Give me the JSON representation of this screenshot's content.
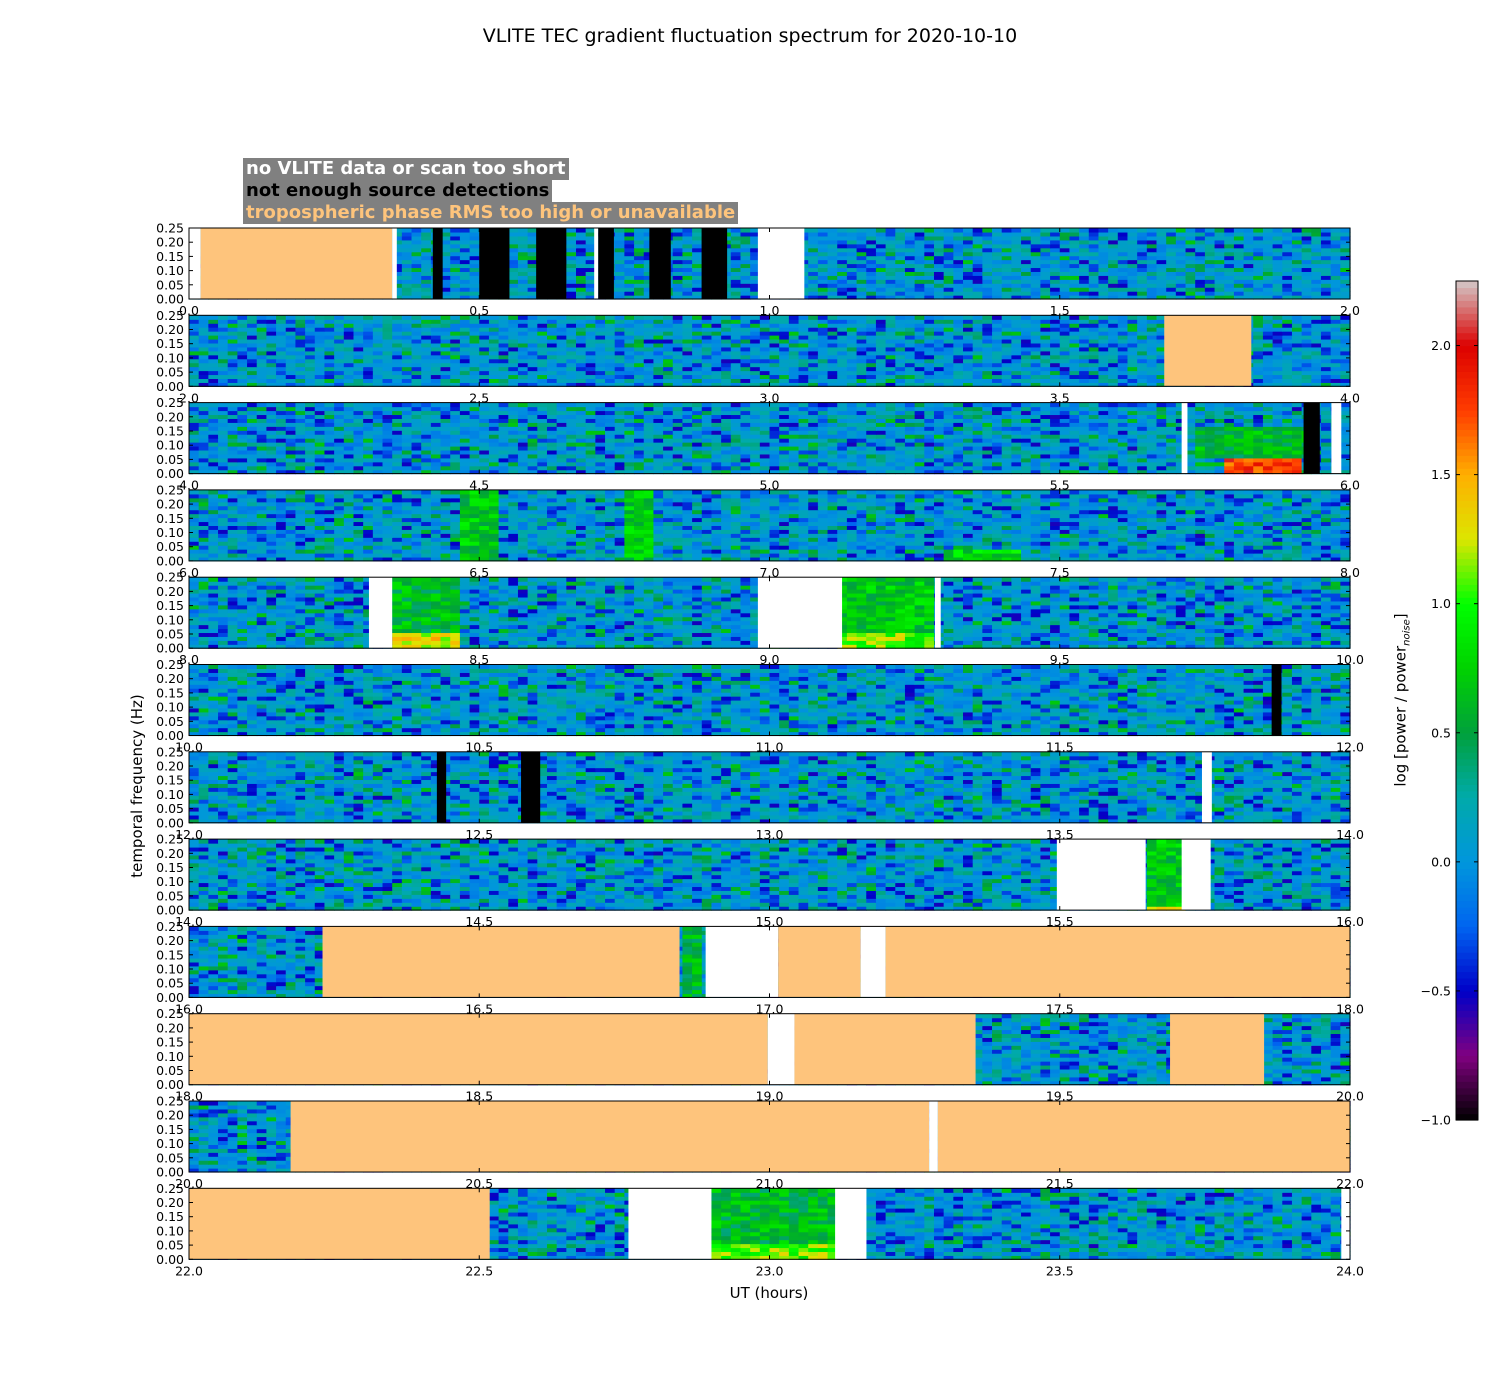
{
  "title": "VLITE TEC gradient fluctuation spectrum for 2020-10-10",
  "legend": {
    "items": [
      {
        "label": "no VLITE data or scan too short",
        "color": "#ffffff"
      },
      {
        "label": "not enough source detections",
        "color": "#000000"
      },
      {
        "label": "tropospheric phase RMS too high or unavailable",
        "color": "#fec47c"
      }
    ]
  },
  "colors": {
    "no_data": "#ffffff",
    "few_sources": "#000000",
    "tropo": "#fec47c",
    "background": "#ffffff"
  },
  "chart_data": {
    "type": "heatmap",
    "title": "VLITE TEC gradient fluctuation spectrum for 2020-10-10",
    "xlabel": "UT (hours)",
    "ylabel": "temporal frequency (Hz)",
    "ylim": [
      0,
      0.25
    ],
    "yticks": [
      "0.00",
      "0.05",
      "0.10",
      "0.15",
      "0.20",
      "0.25"
    ],
    "colorbar": {
      "label": "log [power / power",
      "label_sub": "noise",
      "label_end": "]",
      "range": [
        -1.0,
        2.25
      ],
      "ticks": [
        "−1.0",
        "−0.5",
        "0.0",
        "0.5",
        "1.0",
        "1.5",
        "2.0"
      ]
    },
    "panels": [
      {
        "xlim": [
          0,
          2
        ],
        "xticks": [
          "0.0",
          "0.5",
          "1.0",
          "1.5",
          "2.0"
        ],
        "masks": [
          [
            0,
            0.02,
            "white"
          ],
          [
            0.02,
            0.35,
            "tropo"
          ],
          [
            0.35,
            0.358,
            "white"
          ],
          [
            0.42,
            0.437,
            "black"
          ],
          [
            0.5,
            0.552,
            "black"
          ],
          [
            0.598,
            0.65,
            "black"
          ],
          [
            0.698,
            0.705,
            "white"
          ],
          [
            0.705,
            0.732,
            "black"
          ],
          [
            0.793,
            0.83,
            "black"
          ],
          [
            0.883,
            0.927,
            "black"
          ],
          [
            0.98,
            1.06,
            "white"
          ]
        ],
        "hotspots": []
      },
      {
        "xlim": [
          2,
          4
        ],
        "xticks": [
          "2.0",
          "2.5",
          "3.0",
          "3.5",
          "4.0"
        ],
        "masks": [
          [
            3.68,
            3.83,
            "tropo"
          ]
        ],
        "hotspots": []
      },
      {
        "xlim": [
          4,
          6
        ],
        "xticks": [
          "4.0",
          "4.5",
          "5.0",
          "5.5",
          "6.0"
        ],
        "masks": [
          [
            5.71,
            5.72,
            "white"
          ],
          [
            5.92,
            5.948,
            "black"
          ],
          [
            5.968,
            5.985,
            "white"
          ]
        ],
        "hotspots": [
          [
            5.78,
            5.92,
            0.0,
            0.05,
            1.8
          ],
          [
            5.74,
            5.93,
            0.05,
            0.16,
            0.6
          ]
        ]
      },
      {
        "xlim": [
          6,
          8
        ],
        "xticks": [
          "6.0",
          "6.5",
          "7.0",
          "7.5",
          "8.0"
        ],
        "masks": [],
        "hotspots": [
          [
            6.46,
            6.53,
            0.0,
            0.25,
            0.7
          ],
          [
            6.75,
            6.8,
            0.0,
            0.25,
            0.7
          ],
          [
            7.3,
            7.43,
            0.0,
            0.04,
            0.8
          ]
        ]
      },
      {
        "xlim": [
          8,
          10
        ],
        "xticks": [
          "8.0",
          "8.5",
          "9.0",
          "9.5",
          "10.0"
        ],
        "masks": [
          [
            8.31,
            8.35,
            "white"
          ],
          [
            8.98,
            9.125,
            "white"
          ],
          [
            9.285,
            9.295,
            "white"
          ]
        ],
        "hotspots": [
          [
            8.35,
            8.465,
            0.0,
            0.05,
            1.3
          ],
          [
            8.35,
            8.465,
            0.05,
            0.25,
            0.6
          ],
          [
            9.125,
            9.28,
            0.0,
            0.05,
            1.1
          ],
          [
            9.125,
            9.28,
            0.05,
            0.25,
            0.7
          ]
        ]
      },
      {
        "xlim": [
          10,
          12
        ],
        "xticks": [
          "10.0",
          "10.5",
          "11.0",
          "11.5",
          "12.0"
        ],
        "masks": [
          [
            11.865,
            11.882,
            "black"
          ]
        ],
        "hotspots": []
      },
      {
        "xlim": [
          12,
          14
        ],
        "xticks": [
          "12.0",
          "12.5",
          "13.0",
          "13.5",
          "14.0"
        ],
        "masks": [
          [
            12.427,
            12.443,
            "black"
          ],
          [
            12.572,
            12.605,
            "black"
          ],
          [
            13.745,
            13.762,
            "white"
          ]
        ],
        "hotspots": []
      },
      {
        "xlim": [
          14,
          16
        ],
        "xticks": [
          "14.0",
          "14.5",
          "15.0",
          "15.5",
          "16.0"
        ],
        "masks": [
          [
            15.495,
            15.648,
            "white"
          ],
          [
            15.71,
            15.76,
            "white"
          ]
        ],
        "hotspots": [
          [
            15.648,
            15.71,
            0.0,
            0.02,
            1.3
          ],
          [
            15.648,
            15.71,
            0.02,
            0.25,
            0.7
          ]
        ]
      },
      {
        "xlim": [
          16,
          18
        ],
        "xticks": [
          "16.0",
          "16.5",
          "17.0",
          "17.5",
          "18.0"
        ],
        "masks": [
          [
            16.23,
            16.845,
            "tropo"
          ],
          [
            16.89,
            17.015,
            "white"
          ],
          [
            17.015,
            17.157,
            "tropo"
          ],
          [
            17.157,
            17.2,
            "white"
          ],
          [
            17.2,
            18.0,
            "tropo"
          ]
        ],
        "hotspots": [
          [
            16.845,
            16.89,
            0.0,
            0.25,
            0.6
          ]
        ]
      },
      {
        "xlim": [
          18,
          20
        ],
        "xticks": [
          "18.0",
          "18.5",
          "19.0",
          "19.5",
          "20.0"
        ],
        "masks": [
          [
            18.0,
            18.997,
            "tropo"
          ],
          [
            18.997,
            19.043,
            "white"
          ],
          [
            19.043,
            19.355,
            "tropo"
          ],
          [
            19.69,
            19.852,
            "tropo"
          ]
        ],
        "hotspots": []
      },
      {
        "xlim": [
          20,
          22
        ],
        "xticks": [
          "20.0",
          "20.5",
          "21.0",
          "21.5",
          "22.0"
        ],
        "masks": [
          [
            20.175,
            21.275,
            "tropo"
          ],
          [
            21.275,
            21.29,
            "white"
          ],
          [
            21.29,
            22.0,
            "tropo"
          ]
        ],
        "hotspots": []
      },
      {
        "xlim": [
          22,
          24
        ],
        "xticks": [
          "22.0",
          "22.5",
          "23.0",
          "23.5",
          "24.0"
        ],
        "masks": [
          [
            22.0,
            22.518,
            "tropo"
          ],
          [
            22.757,
            22.9,
            "white"
          ],
          [
            23.113,
            23.167,
            "white"
          ],
          [
            23.985,
            24.0,
            "white"
          ]
        ],
        "hotspots": [
          [
            22.9,
            23.113,
            0.0,
            0.05,
            1.1
          ],
          [
            22.9,
            23.113,
            0.05,
            0.25,
            0.6
          ]
        ]
      }
    ]
  }
}
